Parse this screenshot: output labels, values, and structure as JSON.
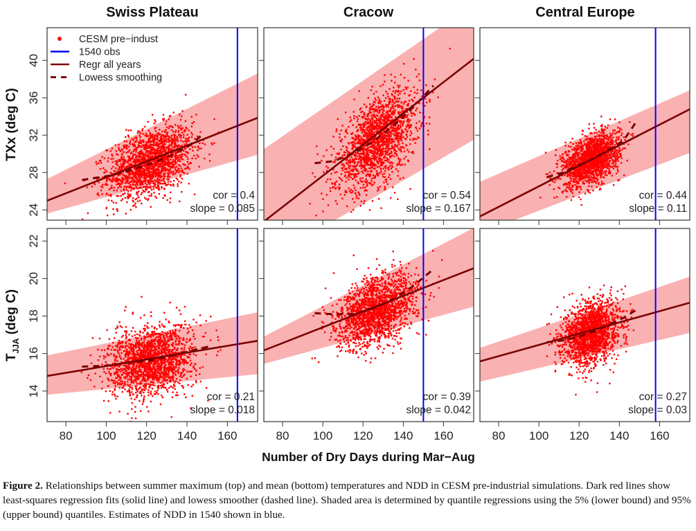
{
  "colors": {
    "points": "#ff0000",
    "band": "#f9a3a3",
    "regression": "#7a0000",
    "obs_line": "#0000ff",
    "axes": "#333333"
  },
  "legend": [
    {
      "label": "CESM pre−indust",
      "symbol": "dot"
    },
    {
      "label": "1540 obs",
      "symbol": "blue-line"
    },
    {
      "label": "Regr all years",
      "symbol": "solid-line"
    },
    {
      "label": "Lowess smoothing",
      "symbol": "dashed-line"
    }
  ],
  "xlabel": "Number of Dry Days during Mar−Aug",
  "column_titles": [
    "Swiss Plateau",
    "Cracow",
    "Central Europe"
  ],
  "rows": [
    {
      "ylabel": "TXx (deg C)",
      "ylabel_main": "TXx (deg C)",
      "ylabel_sub": "",
      "ylabel_unit": ""
    },
    {
      "ylabel": "T_JJA (deg C)",
      "ylabel_main": "T",
      "ylabel_sub": "JJA",
      "ylabel_unit": " (deg C)"
    }
  ],
  "chart_data": [
    {
      "type": "scatter",
      "row": 0,
      "title": "Swiss Plateau",
      "xlim": [
        70.7,
        175
      ],
      "ylim": [
        22.9,
        43.5
      ],
      "xticks": [
        80,
        100,
        120,
        140,
        160
      ],
      "yticks": [
        24,
        28,
        32,
        36,
        40
      ],
      "obs_1540": 165,
      "cor": "cor = 0.4",
      "slope": "slope = 0.085",
      "regression": {
        "slope": 0.085,
        "x": 165,
        "y": 33.0
      },
      "band": {
        "lower": [
          [
            70.7,
            23.6
          ],
          [
            175,
            29.9
          ]
        ],
        "upper": [
          [
            70.7,
            27.3
          ],
          [
            175,
            38.6
          ]
        ]
      },
      "lowess": [
        [
          88,
          27.2
        ],
        [
          100,
          27.6
        ],
        [
          110,
          28.1
        ],
        [
          120,
          28.8
        ],
        [
          130,
          29.6
        ],
        [
          140,
          30.7
        ],
        [
          148,
          32.1
        ]
      ],
      "cloud": {
        "n": 1800,
        "x_mean": 122,
        "x_sd": 10.5,
        "y_mean": 29.1,
        "y_sd": 1.9,
        "r": 0.4
      }
    },
    {
      "type": "scatter",
      "row": 0,
      "title": "Cracow",
      "xlim": [
        70.7,
        175
      ],
      "ylim": [
        22.9,
        43.5
      ],
      "xticks": [
        80,
        100,
        120,
        140,
        160
      ],
      "yticks": [
        24,
        28,
        32,
        36,
        40
      ],
      "obs_1540": 150,
      "cor": "cor = 0.54",
      "slope": "slope = 0.167",
      "regression": {
        "slope": 0.167,
        "x": 150,
        "y": 36.0
      },
      "band": {
        "lower": [
          [
            70.7,
            18.5
          ],
          [
            175,
            31.5
          ]
        ],
        "upper": [
          [
            70.7,
            30.5
          ],
          [
            175,
            46
          ]
        ]
      },
      "lowess": [
        [
          96,
          29.0
        ],
        [
          105,
          29.2
        ],
        [
          115,
          30.0
        ],
        [
          125,
          31.3
        ],
        [
          135,
          33.0
        ],
        [
          145,
          35.0
        ],
        [
          155,
          37.3
        ]
      ],
      "cloud": {
        "n": 1800,
        "x_mean": 127,
        "x_sd": 10,
        "y_mean": 31.4,
        "y_sd": 2.6,
        "r": 0.54
      }
    },
    {
      "type": "scatter",
      "row": 0,
      "title": "Central Europe",
      "xlim": [
        70.7,
        175
      ],
      "ylim": [
        22.9,
        43.5
      ],
      "xticks": [
        80,
        100,
        120,
        140,
        160
      ],
      "yticks": [
        24,
        28,
        32,
        36,
        40
      ],
      "obs_1540": 158,
      "cor": "cor = 0.44",
      "slope": "slope = 0.11",
      "regression": {
        "slope": 0.11,
        "x": 158,
        "y": 32.9
      },
      "band": {
        "lower": [
          [
            70.7,
            21.5
          ],
          [
            175,
            30.1
          ]
        ],
        "upper": [
          [
            70.7,
            27.0
          ],
          [
            175,
            36.8
          ]
        ]
      },
      "lowess": [
        [
          104,
          27.5
        ],
        [
          112,
          28.0
        ],
        [
          120,
          28.8
        ],
        [
          128,
          29.6
        ],
        [
          136,
          30.6
        ],
        [
          142,
          31.4
        ],
        [
          148,
          33.3
        ]
      ],
      "cloud": {
        "n": 1800,
        "x_mean": 126,
        "x_sd": 7,
        "y_mean": 29.4,
        "y_sd": 1.4,
        "r": 0.44
      }
    },
    {
      "type": "scatter",
      "row": 1,
      "title": "",
      "xlim": [
        70.7,
        175
      ],
      "ylim": [
        12.37,
        22.67
      ],
      "xticks": [
        80,
        100,
        120,
        140,
        160
      ],
      "yticks": [
        14,
        16,
        18,
        20,
        22
      ],
      "obs_1540": 165,
      "cor": "cor = 0.21",
      "slope": "slope = 0.018",
      "regression": {
        "slope": 0.018,
        "x": 165,
        "y": 16.5
      },
      "band": {
        "lower": [
          [
            70.7,
            13.8
          ],
          [
            175,
            14.9
          ]
        ],
        "upper": [
          [
            70.7,
            15.9
          ],
          [
            175,
            18.2
          ]
        ]
      },
      "lowess": [
        [
          88,
          15.3
        ],
        [
          100,
          15.35
        ],
        [
          110,
          15.5
        ],
        [
          120,
          15.6
        ],
        [
          130,
          15.8
        ],
        [
          140,
          16.1
        ],
        [
          152,
          16.4
        ]
      ],
      "cloud": {
        "n": 1800,
        "x_mean": 122,
        "x_sd": 10.5,
        "y_mean": 15.6,
        "y_sd": 0.95,
        "r": 0.21
      }
    },
    {
      "type": "scatter",
      "row": 1,
      "title": "",
      "xlim": [
        70.7,
        175
      ],
      "ylim": [
        12.37,
        22.67
      ],
      "xticks": [
        80,
        100,
        120,
        140,
        160
      ],
      "yticks": [
        14,
        16,
        18,
        20,
        22
      ],
      "obs_1540": 150,
      "cor": "cor = 0.39",
      "slope": "slope = 0.042",
      "regression": {
        "slope": 0.042,
        "x": 150,
        "y": 19.5
      },
      "band": {
        "lower": [
          [
            70.7,
            15.45
          ],
          [
            175,
            18.5
          ]
        ],
        "upper": [
          [
            70.7,
            16.9
          ],
          [
            175,
            22.7
          ]
        ]
      },
      "lowess": [
        [
          96,
          18.15
        ],
        [
          105,
          18.1
        ],
        [
          115,
          18.1
        ],
        [
          125,
          18.4
        ],
        [
          135,
          18.9
        ],
        [
          145,
          19.6
        ],
        [
          155,
          20.5
        ]
      ],
      "cloud": {
        "n": 1800,
        "x_mean": 127,
        "x_sd": 10,
        "y_mean": 18.3,
        "y_sd": 0.95,
        "r": 0.39
      }
    },
    {
      "type": "scatter",
      "row": 1,
      "title": "",
      "xlim": [
        70.7,
        175
      ],
      "ylim": [
        12.37,
        22.67
      ],
      "xticks": [
        80,
        100,
        120,
        140,
        160
      ],
      "yticks": [
        14,
        16,
        18,
        20,
        22
      ],
      "obs_1540": 158,
      "cor": "cor = 0.27",
      "slope": "slope = 0.03",
      "regression": {
        "slope": 0.03,
        "x": 158,
        "y": 18.2
      },
      "band": {
        "lower": [
          [
            70.7,
            14.5
          ],
          [
            175,
            17.1
          ]
        ],
        "upper": [
          [
            70.7,
            16.3
          ],
          [
            175,
            20.1
          ]
        ]
      },
      "lowess": [
        [
          104,
          16.6
        ],
        [
          112,
          16.7
        ],
        [
          120,
          16.9
        ],
        [
          128,
          17.2
        ],
        [
          136,
          17.6
        ],
        [
          142,
          17.9
        ],
        [
          148,
          18.3
        ]
      ],
      "cloud": {
        "n": 1800,
        "x_mean": 126,
        "x_sd": 7,
        "y_mean": 17.1,
        "y_sd": 0.85,
        "r": 0.27
      }
    }
  ],
  "caption": {
    "label": "Figure 2.",
    "text": " Relationships between summer maximum (top) and mean (bottom) temperatures and NDD in CESM pre-industrial simulations. Dark red lines show least-squares regression fits (solid line) and lowess smoother (dashed line). Shaded area is determined by quantile regressions using the 5% (lower bound) and 95% (upper bound) quantiles. Estimates of NDD in 1540 shown in blue."
  }
}
